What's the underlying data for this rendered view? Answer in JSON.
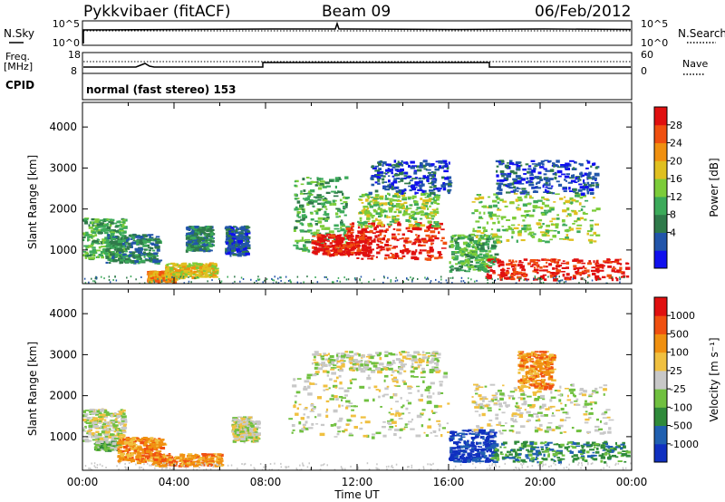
{
  "header": {
    "radar": "Pykkvibaer (fitACF)",
    "beam": "Beam 09",
    "date": "06/Feb/2012"
  },
  "top_panels": {
    "nsky_label": "N.Sky",
    "nsearch_label": "N.Search",
    "nsky_ticks": [
      "10^5",
      "10^0"
    ],
    "nsearch_ticks": [
      "10^5",
      "10^0"
    ],
    "freq_label": "Freq.",
    "freq_unit": "[MHz]",
    "freq_ticks": [
      "18",
      "8"
    ],
    "nave_label": "Nave",
    "nave_ticks": [
      "60",
      "0"
    ],
    "cpid_label": "CPID",
    "cpid_text": "normal (fast stereo) 153"
  },
  "chart_data": [
    {
      "type": "heatmap",
      "name": "power",
      "ylabel": "Slant Range [km]",
      "xlabel": "",
      "yticks": [
        "1000",
        "2000",
        "3000",
        "4000"
      ],
      "ylim": [
        180,
        4600
      ],
      "xlim": [
        0,
        24
      ],
      "colorbar": {
        "label": "Power [dB]",
        "ticks": [
          "28",
          "24",
          "20",
          "16",
          "12",
          "8",
          "4"
        ],
        "colors": [
          "#1010ee",
          "#2255aa",
          "#2f7a4a",
          "#3caa5a",
          "#7ccc3a",
          "#e0c020",
          "#f09010",
          "#f05010",
          "#e01010"
        ]
      },
      "regions": [
        {
          "t0": 0.0,
          "t1": 1.8,
          "r0": 800,
          "r1": 1800,
          "level": 3
        },
        {
          "t0": 1.0,
          "t1": 3.3,
          "r0": 700,
          "r1": 1400,
          "level": 2
        },
        {
          "t0": 2.8,
          "t1": 4.0,
          "r0": 250,
          "r1": 500,
          "level": 6
        },
        {
          "t0": 3.6,
          "t1": 5.8,
          "r0": 350,
          "r1": 700,
          "level": 5
        },
        {
          "t0": 4.5,
          "t1": 5.6,
          "r0": 1000,
          "r1": 1600,
          "level": 2
        },
        {
          "t0": 6.2,
          "t1": 7.2,
          "r0": 900,
          "r1": 1600,
          "level": 1
        },
        {
          "t0": 9.2,
          "t1": 11.5,
          "r0": 1000,
          "r1": 2800,
          "level": 3
        },
        {
          "t0": 10.0,
          "t1": 12.5,
          "r0": 900,
          "r1": 1400,
          "level": 8
        },
        {
          "t0": 11.5,
          "t1": 15.8,
          "r0": 800,
          "r1": 1700,
          "level": 8
        },
        {
          "t0": 12.0,
          "t1": 15.5,
          "r0": 1600,
          "r1": 2400,
          "level": 4
        },
        {
          "t0": 12.5,
          "t1": 16.0,
          "r0": 2400,
          "r1": 3200,
          "level": 1
        },
        {
          "t0": 16.0,
          "t1": 18.0,
          "r0": 500,
          "r1": 1400,
          "level": 3
        },
        {
          "t0": 17.5,
          "t1": 23.8,
          "r0": 300,
          "r1": 800,
          "level": 8
        },
        {
          "t0": 17.0,
          "t1": 22.5,
          "r0": 1200,
          "r1": 2400,
          "level": 4
        },
        {
          "t0": 18.0,
          "t1": 22.5,
          "r0": 2400,
          "r1": 3200,
          "level": 1
        }
      ]
    },
    {
      "type": "heatmap",
      "name": "velocity",
      "ylabel": "Slant Range [km]",
      "xlabel": "Time UT",
      "xticks": [
        "00:00",
        "04:00",
        "08:00",
        "12:00",
        "16:00",
        "20:00",
        "00:00"
      ],
      "yticks": [
        "1000",
        "2000",
        "3000",
        "4000"
      ],
      "ylim": [
        180,
        4600
      ],
      "xlim": [
        0,
        24
      ],
      "colorbar": {
        "label": "Velocity [m s⁻¹]",
        "ticks": [
          "1000",
          "500",
          "100",
          "25",
          "-25",
          "-100",
          "-500",
          "-1000"
        ],
        "colors": [
          "#1030c0",
          "#2060b0",
          "#2f8a3a",
          "#70c040",
          "#c8c8c8",
          "#f0c040",
          "#f09010",
          "#f05010",
          "#e01010"
        ]
      },
      "regions": [
        {
          "t0": 0.0,
          "t1": 1.8,
          "r0": 900,
          "r1": 1700,
          "level": 4
        },
        {
          "t0": 0.5,
          "t1": 1.5,
          "r0": 700,
          "r1": 900,
          "level": 3
        },
        {
          "t0": 1.5,
          "t1": 3.5,
          "r0": 400,
          "r1": 1000,
          "level": 6
        },
        {
          "t0": 3.0,
          "t1": 6.0,
          "r0": 300,
          "r1": 600,
          "level": 6
        },
        {
          "t0": 6.5,
          "t1": 7.6,
          "r0": 900,
          "r1": 1500,
          "level": 4
        },
        {
          "t0": 9.0,
          "t1": 16.0,
          "r0": 1000,
          "r1": 2600,
          "level": 4
        },
        {
          "t0": 10.0,
          "t1": 15.5,
          "r0": 2600,
          "r1": 3100,
          "level": 4
        },
        {
          "t0": 16.0,
          "t1": 18.0,
          "r0": 400,
          "r1": 1200,
          "level": 0
        },
        {
          "t0": 17.8,
          "t1": 23.8,
          "r0": 400,
          "r1": 900,
          "level": 2
        },
        {
          "t0": 17.0,
          "t1": 23.0,
          "r0": 1100,
          "r1": 2300,
          "level": 4
        },
        {
          "t0": 19.0,
          "t1": 20.5,
          "r0": 2200,
          "r1": 3100,
          "level": 6
        }
      ]
    }
  ]
}
